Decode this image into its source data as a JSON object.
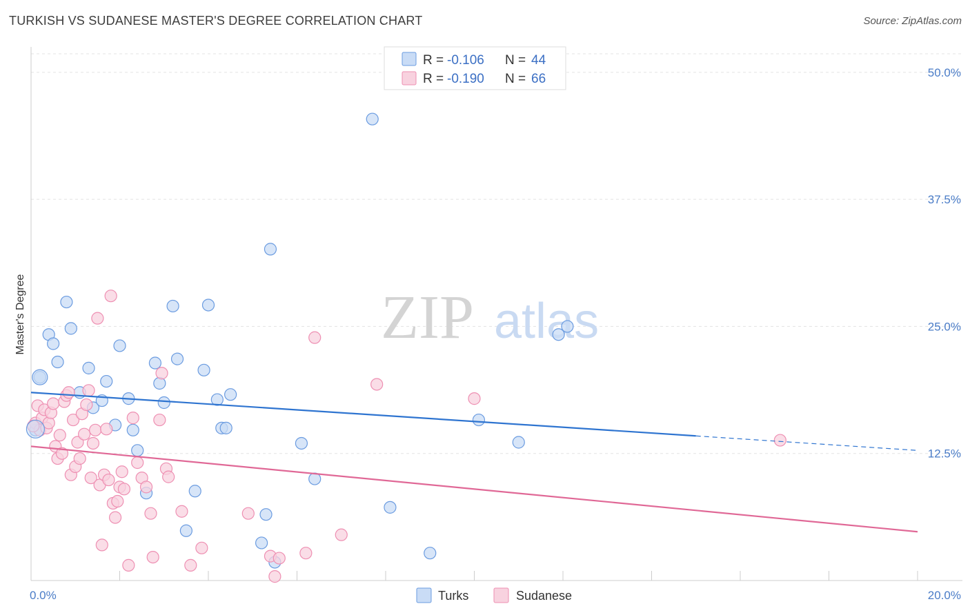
{
  "header": {
    "title": "TURKISH VS SUDANESE MASTER'S DEGREE CORRELATION CHART",
    "source": "Source: ZipAtlas.com"
  },
  "watermark": {
    "zip": "ZIP",
    "atlas": "atlas"
  },
  "legend_top": {
    "r_label": "R = ",
    "n_label": "N = ",
    "turks": {
      "r": "-0.106",
      "n": "44"
    },
    "sudanese": {
      "r": "-0.190",
      "n": "66"
    }
  },
  "chart_data": {
    "type": "scatter",
    "xlim": [
      0,
      20
    ],
    "ylim": [
      0,
      52.5
    ],
    "ylabel": "Master's Degree",
    "x_ticks": [
      {
        "v": 0,
        "label": "0.0%"
      },
      {
        "v": 20,
        "label": "20.0%"
      }
    ],
    "y_ticks": [
      {
        "v": 12.5,
        "label": "12.5%"
      },
      {
        "v": 25,
        "label": "25.0%"
      },
      {
        "v": 37.5,
        "label": "37.5%"
      },
      {
        "v": 50,
        "label": "50.0%"
      }
    ],
    "grid": "horizontal-dashed",
    "legend": "bottom-center",
    "colors": {
      "turks": "#6a9be0",
      "turks_fill": "#c9dcf6",
      "turks_line": "#2e74d0",
      "sudanese": "#ee8fb2",
      "sudanese_fill": "#f8d2df",
      "sudanese_line": "#e06896"
    },
    "series": [
      {
        "name": "Turks",
        "trend": {
          "x0": 0,
          "y0": 18.5,
          "x1": 20,
          "y1": 12.8,
          "solid_until": 15
        },
        "points": [
          [
            0.2,
            20.0
          ],
          [
            0.4,
            24.2
          ],
          [
            0.5,
            23.3
          ],
          [
            0.6,
            21.5
          ],
          [
            0.8,
            27.4
          ],
          [
            0.9,
            24.8
          ],
          [
            1.1,
            18.5
          ],
          [
            1.3,
            20.9
          ],
          [
            1.4,
            17.0
          ],
          [
            1.6,
            17.7
          ],
          [
            1.7,
            19.6
          ],
          [
            1.9,
            15.3
          ],
          [
            2.0,
            23.1
          ],
          [
            2.2,
            17.9
          ],
          [
            2.3,
            14.8
          ],
          [
            2.4,
            12.8
          ],
          [
            2.6,
            8.6
          ],
          [
            2.8,
            21.4
          ],
          [
            2.9,
            19.4
          ],
          [
            3.0,
            17.5
          ],
          [
            3.2,
            27.0
          ],
          [
            3.3,
            21.8
          ],
          [
            3.5,
            4.9
          ],
          [
            3.7,
            8.8
          ],
          [
            3.9,
            20.7
          ],
          [
            4.0,
            27.1
          ],
          [
            4.2,
            17.8
          ],
          [
            4.3,
            15.0
          ],
          [
            4.4,
            15.0
          ],
          [
            4.5,
            18.3
          ],
          [
            5.2,
            3.7
          ],
          [
            5.3,
            6.5
          ],
          [
            5.4,
            32.6
          ],
          [
            5.5,
            1.8
          ],
          [
            6.1,
            13.5
          ],
          [
            6.4,
            10.0
          ],
          [
            7.7,
            45.4
          ],
          [
            8.1,
            7.2
          ],
          [
            9.0,
            2.7
          ],
          [
            10.1,
            15.8
          ],
          [
            11.0,
            13.6
          ],
          [
            11.9,
            24.2
          ],
          [
            12.1,
            25.0
          ],
          [
            0.1,
            14.8
          ]
        ]
      },
      {
        "name": "Sudanese",
        "trend": {
          "x0": 0,
          "y0": 13.2,
          "x1": 20,
          "y1": 4.8
        },
        "points": [
          [
            0.1,
            15.5
          ],
          [
            0.15,
            17.2
          ],
          [
            0.2,
            14.8
          ],
          [
            0.25,
            16.0
          ],
          [
            0.3,
            16.8
          ],
          [
            0.35,
            15.0
          ],
          [
            0.4,
            15.5
          ],
          [
            0.45,
            16.5
          ],
          [
            0.5,
            17.4
          ],
          [
            0.55,
            13.2
          ],
          [
            0.6,
            12.0
          ],
          [
            0.65,
            14.3
          ],
          [
            0.7,
            12.5
          ],
          [
            0.75,
            17.6
          ],
          [
            0.8,
            18.2
          ],
          [
            0.85,
            18.5
          ],
          [
            0.9,
            10.4
          ],
          [
            0.95,
            15.8
          ],
          [
            1.0,
            11.2
          ],
          [
            1.05,
            13.6
          ],
          [
            1.1,
            12.0
          ],
          [
            1.15,
            16.4
          ],
          [
            1.2,
            14.4
          ],
          [
            1.25,
            17.3
          ],
          [
            1.3,
            18.7
          ],
          [
            1.35,
            10.1
          ],
          [
            1.4,
            13.5
          ],
          [
            1.45,
            14.8
          ],
          [
            1.5,
            25.8
          ],
          [
            1.55,
            9.4
          ],
          [
            1.6,
            3.5
          ],
          [
            1.65,
            10.4
          ],
          [
            1.7,
            14.9
          ],
          [
            1.75,
            9.9
          ],
          [
            1.8,
            28.0
          ],
          [
            1.85,
            7.6
          ],
          [
            1.9,
            6.2
          ],
          [
            1.95,
            7.8
          ],
          [
            2.0,
            9.2
          ],
          [
            2.05,
            10.7
          ],
          [
            2.1,
            9.0
          ],
          [
            2.2,
            1.5
          ],
          [
            2.3,
            16.0
          ],
          [
            2.4,
            11.6
          ],
          [
            2.5,
            10.1
          ],
          [
            2.6,
            9.2
          ],
          [
            2.7,
            6.6
          ],
          [
            2.75,
            2.3
          ],
          [
            2.9,
            15.8
          ],
          [
            2.95,
            20.4
          ],
          [
            3.05,
            11.0
          ],
          [
            3.1,
            10.2
          ],
          [
            3.4,
            6.8
          ],
          [
            3.6,
            1.5
          ],
          [
            3.85,
            3.2
          ],
          [
            4.9,
            6.6
          ],
          [
            5.4,
            2.4
          ],
          [
            5.5,
            0.4
          ],
          [
            5.6,
            2.2
          ],
          [
            6.2,
            2.7
          ],
          [
            6.4,
            23.9
          ],
          [
            7.0,
            4.5
          ],
          [
            7.8,
            19.3
          ],
          [
            10.0,
            17.9
          ],
          [
            16.9,
            13.8
          ],
          [
            0.05,
            15.2
          ]
        ]
      }
    ]
  },
  "legend_bottom": {
    "turks": "Turks",
    "sudanese": "Sudanese"
  }
}
